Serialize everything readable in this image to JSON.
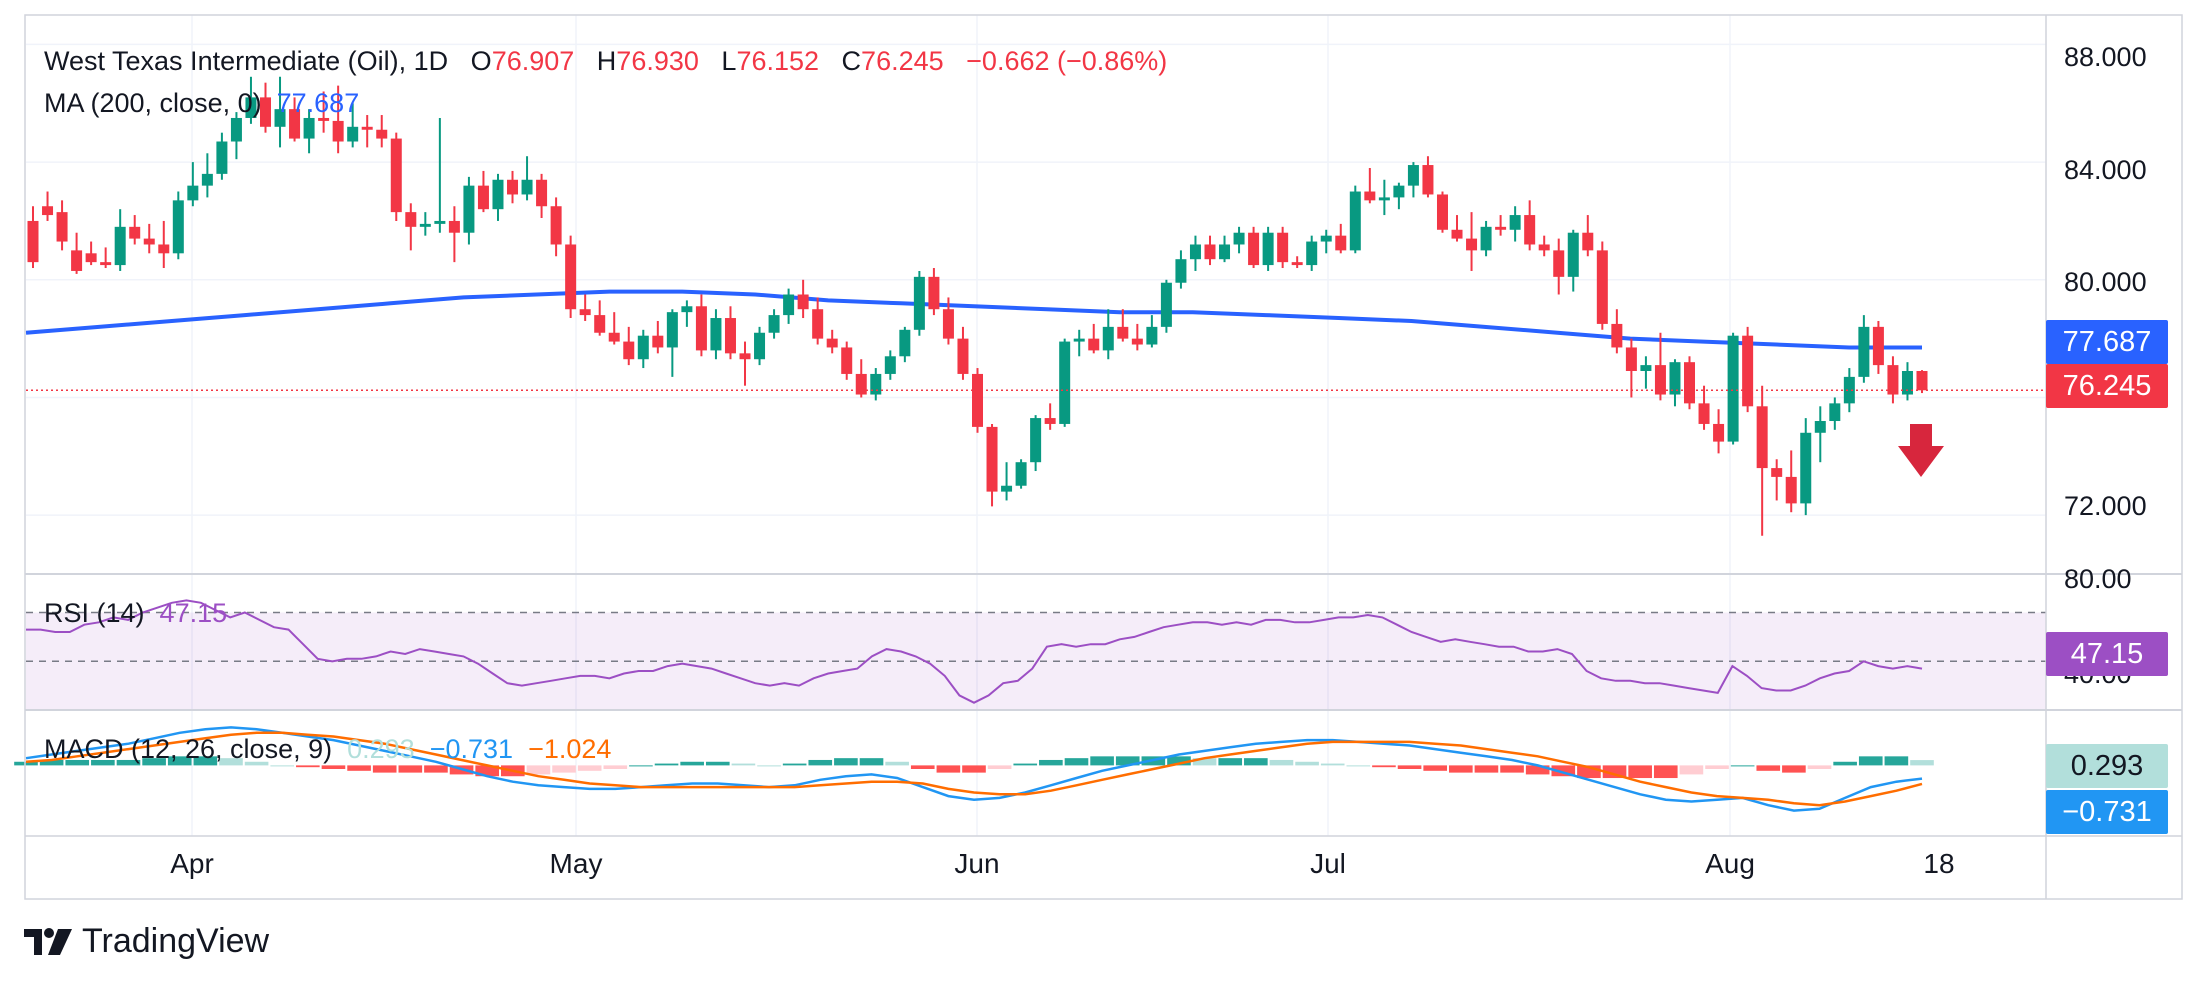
{
  "header": {
    "symbol": "West Texas Intermediate (Oil), 1D",
    "o_label": "O",
    "o_value": "76.907",
    "h_label": "H",
    "h_value": "76.930",
    "l_label": "L",
    "l_value": "76.152",
    "c_label": "C",
    "c_value": "76.245",
    "change": "−0.662 (−0.86%)",
    "ma_label": "MA (200, close, 0)",
    "ma_value": "77.687"
  },
  "rsi": {
    "label": "RSI (14)",
    "value": "47.15",
    "upper_level": "80.00",
    "lower_level": "40.00"
  },
  "macd": {
    "label": "MACD (12, 26, close, 9)",
    "hist": "0.293",
    "macd": "−0.731",
    "signal": "−1.024"
  },
  "price_axis": [
    "88.000",
    "84.000",
    "80.000",
    "72.000"
  ],
  "badges": {
    "ma": "77.687",
    "close": "76.245",
    "rsi": "47.15",
    "macd_hist": "0.293",
    "macd_line": "−0.731"
  },
  "x_axis": [
    "Apr",
    "May",
    "Jun",
    "Jul",
    "Aug",
    "18"
  ],
  "logo": "TradingView",
  "colors": {
    "up": "#089981",
    "down": "#f23645",
    "ma": "#2962ff",
    "rsi": "#9c4fc4",
    "macd": "#2196f3",
    "signal": "#ff6d00"
  },
  "chart_data": {
    "type": "candlestick",
    "title": "West Texas Intermediate (Oil), 1D",
    "ylim": [
      70.0,
      89.0
    ],
    "y_ticks": [
      72,
      76,
      80,
      84,
      88
    ],
    "last_close": 76.245,
    "ma200_last": 77.687,
    "candles": [
      [
        82.0,
        82.5,
        80.4,
        80.6
      ],
      [
        82.5,
        83.0,
        82.0,
        82.2
      ],
      [
        82.3,
        82.7,
        81.0,
        81.3
      ],
      [
        81.0,
        81.6,
        80.2,
        80.3
      ],
      [
        80.9,
        81.3,
        80.5,
        80.6
      ],
      [
        80.6,
        81.1,
        80.4,
        80.5
      ],
      [
        80.5,
        82.4,
        80.3,
        81.8
      ],
      [
        81.8,
        82.2,
        81.2,
        81.4
      ],
      [
        81.4,
        81.9,
        80.9,
        81.2
      ],
      [
        81.2,
        82.0,
        80.4,
        80.9
      ],
      [
        80.9,
        83.0,
        80.7,
        82.7
      ],
      [
        82.7,
        84.0,
        82.5,
        83.2
      ],
      [
        83.2,
        84.3,
        82.8,
        83.6
      ],
      [
        83.6,
        85.0,
        83.4,
        84.7
      ],
      [
        84.7,
        85.7,
        84.1,
        85.5
      ],
      [
        85.5,
        86.9,
        85.3,
        86.2
      ],
      [
        86.2,
        86.7,
        85.0,
        85.2
      ],
      [
        85.2,
        86.9,
        84.5,
        85.8
      ],
      [
        85.8,
        86.2,
        84.7,
        84.8
      ],
      [
        84.8,
        85.8,
        84.3,
        85.5
      ],
      [
        85.5,
        86.4,
        85.0,
        85.4
      ],
      [
        85.4,
        86.6,
        84.3,
        84.7
      ],
      [
        84.7,
        86.0,
        84.5,
        85.2
      ],
      [
        85.2,
        85.6,
        84.5,
        85.1
      ],
      [
        85.1,
        85.6,
        84.5,
        84.8
      ],
      [
        84.8,
        85.0,
        82.0,
        82.3
      ],
      [
        82.3,
        82.6,
        81.0,
        81.8
      ],
      [
        81.8,
        82.3,
        81.5,
        81.9
      ],
      [
        81.9,
        85.5,
        81.6,
        82.0
      ],
      [
        82.0,
        82.5,
        80.6,
        81.6
      ],
      [
        81.6,
        83.5,
        81.2,
        83.2
      ],
      [
        83.2,
        83.7,
        82.3,
        82.4
      ],
      [
        82.4,
        83.6,
        82.0,
        83.4
      ],
      [
        83.4,
        83.7,
        82.6,
        82.9
      ],
      [
        82.9,
        84.2,
        82.7,
        83.4
      ],
      [
        83.4,
        83.6,
        82.1,
        82.5
      ],
      [
        82.5,
        82.8,
        80.8,
        81.2
      ],
      [
        81.2,
        81.5,
        78.7,
        79.0
      ],
      [
        79.0,
        79.5,
        78.6,
        78.8
      ],
      [
        78.8,
        79.3,
        78.1,
        78.2
      ],
      [
        78.2,
        78.9,
        77.8,
        77.9
      ],
      [
        77.9,
        78.4,
        77.1,
        77.3
      ],
      [
        77.3,
        78.3,
        77.0,
        78.1
      ],
      [
        78.1,
        78.6,
        77.5,
        77.7
      ],
      [
        77.7,
        79.0,
        76.7,
        78.9
      ],
      [
        78.9,
        79.3,
        78.4,
        79.1
      ],
      [
        79.1,
        79.5,
        77.4,
        77.6
      ],
      [
        77.6,
        79.0,
        77.3,
        78.7
      ],
      [
        78.7,
        79.1,
        77.3,
        77.5
      ],
      [
        77.5,
        77.9,
        76.4,
        77.3
      ],
      [
        77.3,
        78.4,
        77.1,
        78.2
      ],
      [
        78.2,
        79.0,
        78.0,
        78.8
      ],
      [
        78.8,
        79.7,
        78.5,
        79.5
      ],
      [
        79.5,
        80.0,
        78.7,
        79.0
      ],
      [
        79.0,
        79.4,
        77.8,
        78.0
      ],
      [
        78.0,
        78.3,
        77.5,
        77.7
      ],
      [
        77.7,
        77.9,
        76.6,
        76.8
      ],
      [
        76.8,
        77.3,
        76.0,
        76.1
      ],
      [
        76.1,
        77.0,
        75.9,
        76.8
      ],
      [
        76.8,
        77.6,
        76.6,
        77.4
      ],
      [
        77.4,
        78.4,
        77.2,
        78.3
      ],
      [
        78.3,
        80.3,
        78.1,
        80.1
      ],
      [
        80.1,
        80.4,
        78.8,
        79.0
      ],
      [
        79.0,
        79.4,
        77.8,
        78.0
      ],
      [
        78.0,
        78.4,
        76.6,
        76.8
      ],
      [
        76.8,
        77.0,
        74.8,
        75.0
      ],
      [
        75.0,
        75.1,
        72.3,
        72.8
      ],
      [
        72.8,
        73.8,
        72.5,
        73.0
      ],
      [
        73.0,
        73.9,
        72.9,
        73.8
      ],
      [
        73.8,
        75.4,
        73.5,
        75.3
      ],
      [
        75.3,
        75.8,
        74.9,
        75.1
      ],
      [
        75.1,
        78.0,
        75.0,
        77.9
      ],
      [
        77.9,
        78.3,
        77.4,
        78.0
      ],
      [
        78.0,
        78.5,
        77.5,
        77.6
      ],
      [
        77.6,
        79.0,
        77.3,
        78.4
      ],
      [
        78.4,
        79.0,
        77.9,
        78.0
      ],
      [
        78.0,
        78.5,
        77.6,
        77.8
      ],
      [
        77.8,
        78.8,
        77.7,
        78.4
      ],
      [
        78.4,
        80.0,
        78.2,
        79.9
      ],
      [
        79.9,
        81.0,
        79.7,
        80.7
      ],
      [
        80.7,
        81.5,
        80.3,
        81.2
      ],
      [
        81.2,
        81.5,
        80.5,
        80.7
      ],
      [
        80.7,
        81.5,
        80.6,
        81.2
      ],
      [
        81.2,
        81.8,
        80.9,
        81.6
      ],
      [
        81.6,
        81.8,
        80.4,
        80.5
      ],
      [
        80.5,
        81.8,
        80.3,
        81.6
      ],
      [
        81.6,
        81.8,
        80.4,
        80.6
      ],
      [
        80.6,
        80.8,
        80.4,
        80.5
      ],
      [
        80.5,
        81.5,
        80.3,
        81.3
      ],
      [
        81.3,
        81.7,
        80.9,
        81.5
      ],
      [
        81.5,
        81.9,
        80.9,
        81.0
      ],
      [
        81.0,
        83.2,
        80.9,
        83.0
      ],
      [
        83.0,
        83.8,
        82.6,
        82.7
      ],
      [
        82.7,
        83.4,
        82.2,
        82.8
      ],
      [
        82.8,
        83.3,
        82.4,
        83.2
      ],
      [
        83.2,
        84.0,
        82.8,
        83.9
      ],
      [
        83.9,
        84.2,
        82.8,
        82.9
      ],
      [
        82.9,
        83.0,
        81.6,
        81.7
      ],
      [
        81.7,
        82.2,
        81.3,
        81.4
      ],
      [
        81.4,
        82.3,
        80.3,
        81.0
      ],
      [
        81.0,
        82.0,
        80.8,
        81.8
      ],
      [
        81.8,
        82.2,
        81.5,
        81.7
      ],
      [
        81.7,
        82.5,
        81.3,
        82.2
      ],
      [
        82.2,
        82.7,
        81.0,
        81.2
      ],
      [
        81.2,
        81.5,
        80.8,
        81.0
      ],
      [
        81.0,
        81.4,
        79.5,
        80.1
      ],
      [
        80.1,
        81.7,
        79.6,
        81.6
      ],
      [
        81.6,
        82.2,
        80.8,
        81.0
      ],
      [
        81.0,
        81.3,
        78.3,
        78.5
      ],
      [
        78.5,
        79.0,
        77.5,
        77.7
      ],
      [
        77.7,
        78.0,
        76.0,
        76.9
      ],
      [
        76.9,
        77.4,
        76.3,
        77.1
      ],
      [
        77.1,
        78.2,
        75.9,
        76.1
      ],
      [
        76.1,
        77.3,
        75.7,
        77.2
      ],
      [
        77.2,
        77.4,
        75.6,
        75.8
      ],
      [
        75.8,
        76.4,
        74.9,
        75.1
      ],
      [
        75.1,
        75.6,
        74.1,
        74.5
      ],
      [
        74.5,
        78.2,
        74.4,
        78.1
      ],
      [
        78.1,
        78.4,
        75.5,
        75.7
      ],
      [
        75.7,
        76.4,
        71.3,
        73.6
      ],
      [
        73.6,
        73.9,
        72.5,
        73.3
      ],
      [
        73.3,
        74.2,
        72.1,
        72.4
      ],
      [
        72.4,
        75.3,
        72.0,
        74.8
      ],
      [
        74.8,
        75.7,
        73.8,
        75.2
      ],
      [
        75.2,
        76.0,
        74.9,
        75.8
      ],
      [
        75.8,
        77.0,
        75.5,
        76.7
      ],
      [
        76.7,
        78.8,
        76.5,
        78.4
      ],
      [
        78.4,
        78.6,
        76.8,
        77.1
      ],
      [
        77.1,
        77.4,
        75.8,
        76.1
      ],
      [
        76.1,
        77.2,
        75.9,
        76.9
      ],
      [
        76.9,
        76.93,
        76.15,
        76.245
      ]
    ],
    "ma200": [
      78.2,
      78.4,
      78.6,
      78.8,
      79.0,
      79.2,
      79.4,
      79.5,
      79.6,
      79.6,
      79.5,
      79.3,
      79.2,
      79.1,
      79.0,
      78.9,
      78.9,
      78.8,
      78.7,
      78.6,
      78.4,
      78.2,
      78.0,
      77.9,
      77.8,
      77.7,
      77.7
    ],
    "rsi": {
      "ylim": [
        30,
        85
      ],
      "levels": [
        70,
        50,
        30
      ],
      "values": [
        63,
        63,
        62,
        62,
        65,
        66,
        68,
        67,
        70,
        72,
        74,
        75,
        74,
        71,
        68,
        70,
        67,
        64,
        63,
        57,
        51,
        50,
        51,
        51,
        52,
        54,
        53,
        55,
        54,
        53,
        52,
        49,
        45,
        41,
        40,
        41,
        42,
        43,
        44,
        44,
        43,
        45,
        46,
        46,
        48,
        49,
        48,
        47,
        45,
        43,
        41,
        40,
        41,
        40,
        43,
        45,
        46,
        47,
        52,
        55,
        54,
        52,
        49,
        44,
        36,
        33,
        36,
        41,
        42,
        47,
        56,
        57,
        56,
        57,
        57,
        59,
        60,
        62,
        64,
        65,
        66,
        66,
        65,
        66,
        65,
        67,
        67,
        66,
        66,
        67,
        68,
        68,
        69,
        68,
        65,
        62,
        60,
        58,
        59,
        58,
        57,
        56,
        56,
        54,
        54,
        55,
        53,
        46,
        43,
        42,
        42,
        41,
        41,
        40,
        39,
        38,
        37,
        48,
        44,
        39,
        38,
        38,
        40,
        43,
        45,
        46,
        50,
        48,
        47,
        48,
        47
      ]
    },
    "macd": {
      "macd": [
        0.4,
        0.6,
        0.8,
        1.0,
        1.2,
        1.5,
        1.8,
        2.0,
        2.1,
        2.0,
        1.8,
        1.6,
        1.4,
        1.1,
        0.8,
        0.5,
        0.2,
        -0.2,
        -0.6,
        -0.9,
        -1.1,
        -1.2,
        -1.3,
        -1.3,
        -1.2,
        -1.1,
        -1.0,
        -1.0,
        -1.1,
        -1.2,
        -1.1,
        -0.8,
        -0.6,
        -0.5,
        -0.7,
        -1.2,
        -1.7,
        -1.9,
        -1.8,
        -1.5,
        -1.1,
        -0.7,
        -0.3,
        0.0,
        0.3,
        0.6,
        0.8,
        1.0,
        1.2,
        1.3,
        1.4,
        1.4,
        1.3,
        1.2,
        1.1,
        0.9,
        0.7,
        0.5,
        0.3,
        0.0,
        -0.4,
        -0.8,
        -1.2,
        -1.6,
        -1.9,
        -2.0,
        -1.9,
        -1.8,
        -2.2,
        -2.5,
        -2.4,
        -1.8,
        -1.2,
        -0.9,
        -0.731
      ],
      "signal": [
        0.2,
        0.3,
        0.5,
        0.7,
        0.9,
        1.1,
        1.3,
        1.5,
        1.7,
        1.8,
        1.8,
        1.7,
        1.6,
        1.4,
        1.2,
        0.9,
        0.6,
        0.3,
        0.0,
        -0.3,
        -0.6,
        -0.8,
        -1.0,
        -1.1,
        -1.2,
        -1.2,
        -1.2,
        -1.2,
        -1.2,
        -1.2,
        -1.2,
        -1.1,
        -1.0,
        -0.9,
        -0.9,
        -1.0,
        -1.3,
        -1.5,
        -1.6,
        -1.6,
        -1.4,
        -1.1,
        -0.8,
        -0.5,
        -0.2,
        0.1,
        0.4,
        0.6,
        0.8,
        1.0,
        1.2,
        1.3,
        1.3,
        1.3,
        1.3,
        1.2,
        1.1,
        0.9,
        0.7,
        0.5,
        0.2,
        -0.1,
        -0.5,
        -0.9,
        -1.2,
        -1.5,
        -1.7,
        -1.8,
        -1.9,
        -2.1,
        -2.2,
        -2.0,
        -1.7,
        -1.4,
        -1.024
      ],
      "hist": [
        0.2,
        0.3,
        0.3,
        0.3,
        0.3,
        0.4,
        0.5,
        0.5,
        0.4,
        0.2,
        0.0,
        -0.1,
        -0.2,
        -0.3,
        -0.4,
        -0.4,
        -0.4,
        -0.5,
        -0.6,
        -0.6,
        -0.5,
        -0.4,
        -0.3,
        -0.2,
        0.0,
        0.1,
        0.2,
        0.2,
        0.1,
        0.0,
        0.1,
        0.3,
        0.4,
        0.4,
        0.2,
        -0.2,
        -0.4,
        -0.4,
        -0.2,
        0.1,
        0.3,
        0.4,
        0.5,
        0.5,
        0.5,
        0.5,
        0.4,
        0.4,
        0.4,
        0.3,
        0.2,
        0.1,
        0.0,
        -0.1,
        -0.2,
        -0.3,
        -0.4,
        -0.4,
        -0.4,
        -0.5,
        -0.6,
        -0.7,
        -0.7,
        -0.7,
        -0.7,
        -0.5,
        -0.2,
        0.0,
        -0.3,
        -0.4,
        -0.2,
        0.2,
        0.5,
        0.5,
        0.293
      ]
    }
  }
}
